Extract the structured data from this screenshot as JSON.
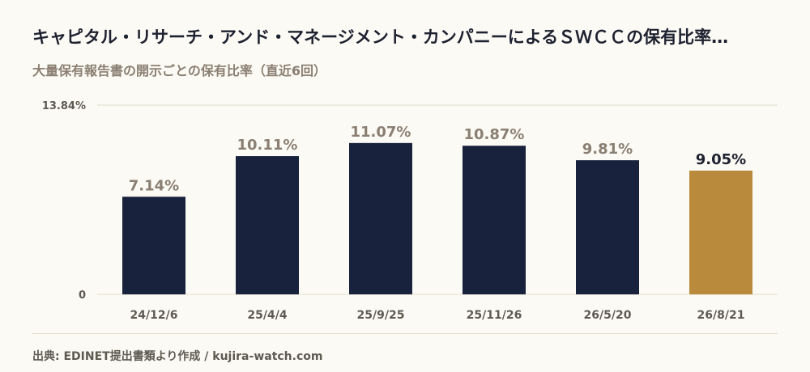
{
  "title": "キャピタル・リサーチ・アンド・マネージメント・カンパニーによるＳＷＣＣの保有比率…",
  "subtitle": "大量保有報告書の開示ごとの保有比率（直近6回）",
  "source": "出典: EDINET提出書類より作成 / kujira-watch.com",
  "colors": {
    "bar": "#18223c",
    "highlight": "#b98a3c",
    "label": "#8a7f72",
    "highlight_label": "#1d2130",
    "axis_text": "#5d5a52",
    "grid": "#e1dccd"
  },
  "chart_data": {
    "type": "bar",
    "categories": [
      "24/12/6",
      "25/4/4",
      "25/9/25",
      "25/11/26",
      "26/5/20",
      "26/8/21"
    ],
    "values": [
      7.14,
      10.11,
      11.07,
      10.87,
      9.81,
      9.05
    ],
    "value_labels": [
      "7.14%",
      "10.11%",
      "11.07%",
      "10.87%",
      "9.81%",
      "9.05%"
    ],
    "highlight_index": 5,
    "ylim": [
      0,
      13.84
    ],
    "y_tick_labels": [
      "0",
      "13.84%"
    ],
    "xlabel": "",
    "ylabel": "",
    "grid": true
  }
}
